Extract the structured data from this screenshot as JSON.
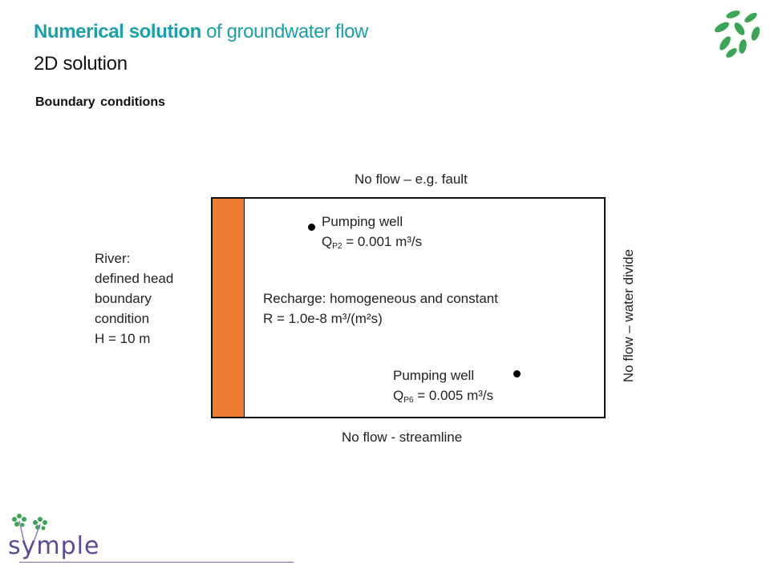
{
  "header": {
    "title_accent": "Numerical solution",
    "title_rest": " of groundwater flow",
    "subtitle": "2D solution",
    "section": "Boundary conditions"
  },
  "diagram": {
    "top_boundary": "No flow – e.g. fault",
    "bottom_boundary": "No flow - streamline",
    "right_boundary": "No flow – water divide",
    "river": {
      "line1": "River:",
      "line2": "defined head",
      "line3": "boundary",
      "line4": "condition",
      "line5": "H = 10 m"
    },
    "well1": {
      "label": "Pumping well",
      "q_prefix": "Q",
      "q_sub": "P2",
      "q_value": " = 0.001 m³/s"
    },
    "well2": {
      "label": "Pumping well",
      "q_prefix": "Q",
      "q_sub": "P6",
      "q_value": " = 0.005 m³/s"
    },
    "recharge": {
      "line1": "Recharge: homogeneous and constant",
      "line2": "R = 1.0e-8 m³/(m²s)"
    }
  },
  "footer": {
    "logo_text": "symple"
  },
  "colors": {
    "accent": "#1aa0a6",
    "river": "#ed7d31",
    "leaf": "#3aa655",
    "logo": "#5a4a9a"
  }
}
